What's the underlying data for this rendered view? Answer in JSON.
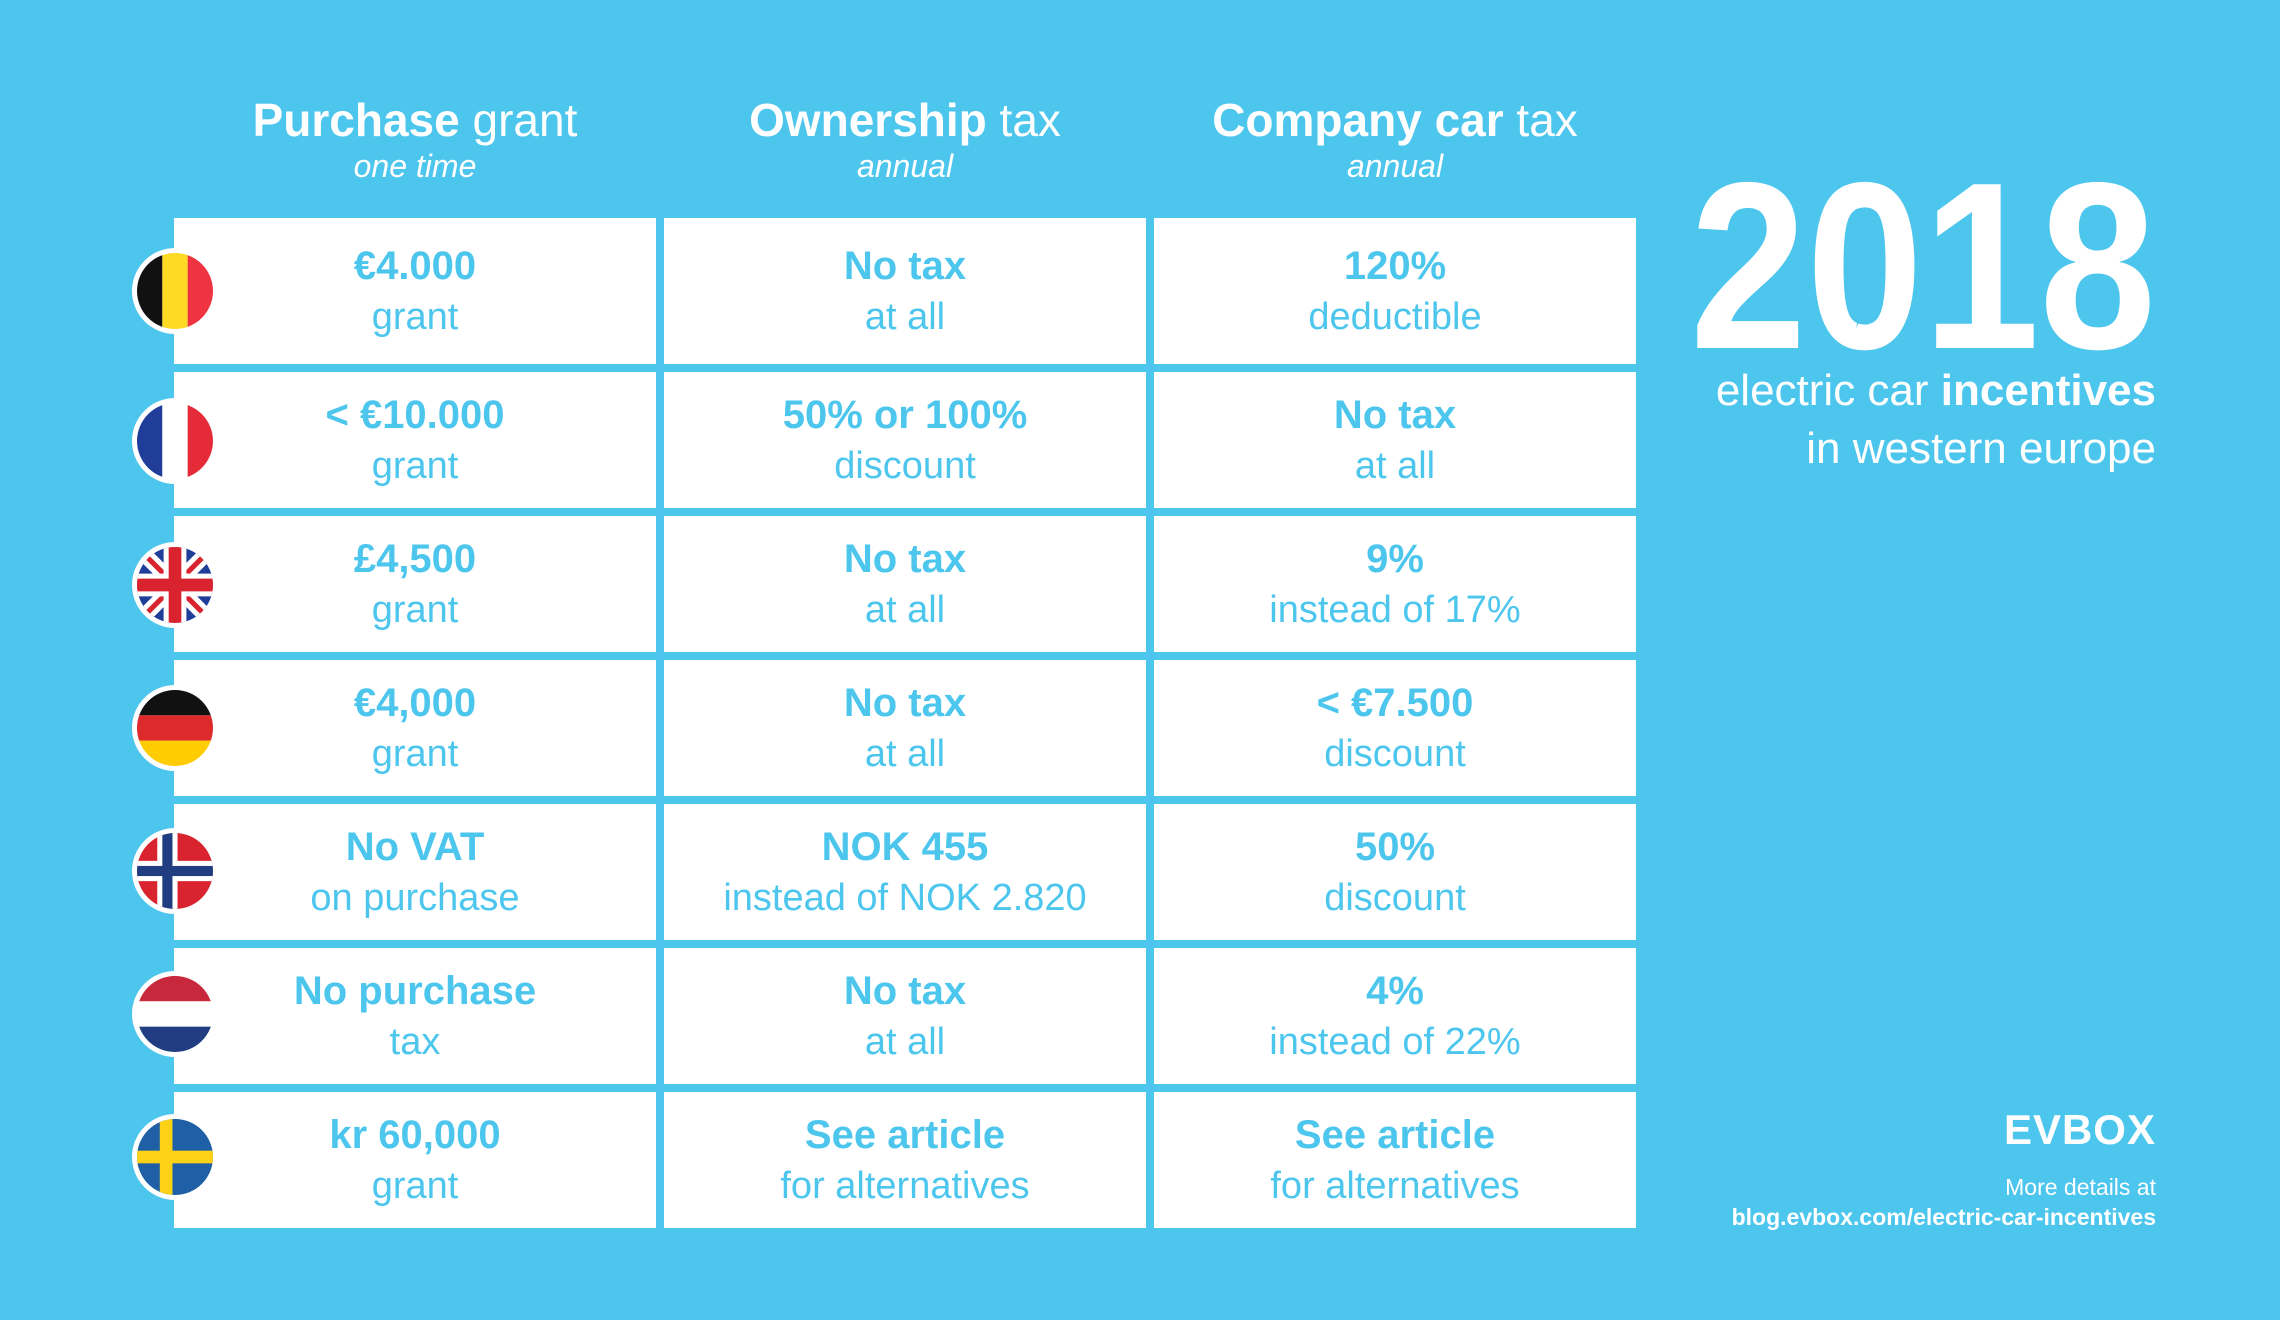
{
  "columns": [
    {
      "title_bold": "Purchase",
      "title_rest": " grant",
      "subtitle": "one time"
    },
    {
      "title_bold": "Ownership",
      "title_rest": " tax",
      "subtitle": "annual"
    },
    {
      "title_bold": "Company car",
      "title_rest": " tax",
      "subtitle": "annual"
    }
  ],
  "rows": [
    {
      "flag_icon": "belgium-flag-icon",
      "cells": [
        {
          "main": "€4.000",
          "sub": "grant"
        },
        {
          "main": "No tax",
          "sub": "at all"
        },
        {
          "main": "120%",
          "sub": "deductible"
        }
      ]
    },
    {
      "flag_icon": "france-flag-icon",
      "cells": [
        {
          "main": "< €10.000",
          "sub": "grant"
        },
        {
          "main": "50% or 100%",
          "sub": "discount"
        },
        {
          "main": "No tax",
          "sub": "at all"
        }
      ]
    },
    {
      "flag_icon": "uk-flag-icon",
      "cells": [
        {
          "main": "£4,500",
          "sub": "grant"
        },
        {
          "main": "No tax",
          "sub": "at all"
        },
        {
          "main": "9%",
          "sub": "instead of 17%"
        }
      ]
    },
    {
      "flag_icon": "germany-flag-icon",
      "cells": [
        {
          "main": "€4,000",
          "sub": "grant"
        },
        {
          "main": "No tax",
          "sub": "at all"
        },
        {
          "main": "< €7.500",
          "sub": "discount"
        }
      ]
    },
    {
      "flag_icon": "norway-flag-icon",
      "cells": [
        {
          "main": "No VAT",
          "sub": "on purchase"
        },
        {
          "main": "NOK 455",
          "sub": "instead of NOK 2.820"
        },
        {
          "main": "50%",
          "sub": "discount"
        }
      ]
    },
    {
      "flag_icon": "netherlands-flag-icon",
      "cells": [
        {
          "main": "No purchase",
          "sub": "tax"
        },
        {
          "main": "No tax",
          "sub": "at all"
        },
        {
          "main": "4%",
          "sub": "instead of 22%"
        }
      ]
    },
    {
      "flag_icon": "sweden-flag-icon",
      "cells": [
        {
          "main": "kr 60,000",
          "sub": "grant"
        },
        {
          "main": "See article",
          "sub": "for alternatives"
        },
        {
          "main": "See article",
          "sub": "for alternatives"
        }
      ]
    }
  ],
  "sidebar": {
    "year_prefix": "2",
    "year_zero": "0",
    "year_suffix": "18",
    "subtitle_light": "electric car ",
    "subtitle_bold": "incentives",
    "subtitle_line2": "in western europe",
    "logo": "EVBOX",
    "more_label": "More details at",
    "more_url": "blog.evbox.com/electric-car-incentives",
    "bolt_icon": "lightning-bolt-icon"
  },
  "colors": {
    "background": "#4dc6ee",
    "accent": "#4dc6ee",
    "cell": "#ffffff"
  }
}
